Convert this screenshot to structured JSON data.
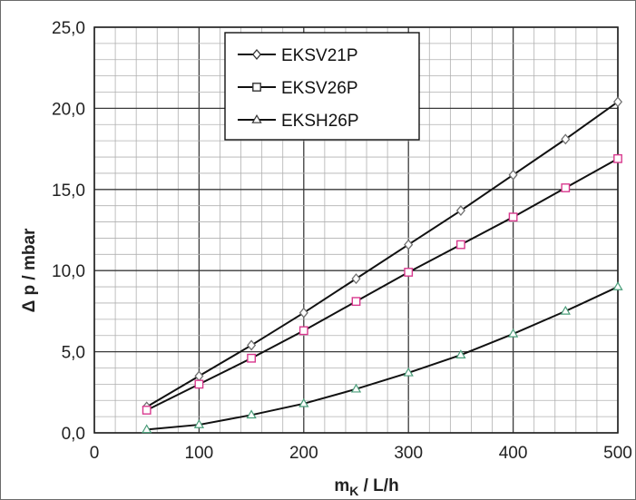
{
  "chart_data": {
    "type": "line",
    "xlabel_main": "m",
    "xlabel_sub": "K",
    "xlabel_rest": " /  L/h",
    "ylabel": "Δ p  /  mbar",
    "xlim": [
      0,
      500
    ],
    "ylim": [
      0,
      25
    ],
    "x_ticks": [
      "0",
      "100",
      "200",
      "300",
      "400",
      "500"
    ],
    "y_ticks": [
      "0,0",
      "5,0",
      "10,0",
      "15,0",
      "20,0",
      "25,0"
    ],
    "grid": true,
    "legend_position": "top-center",
    "x": [
      50,
      100,
      150,
      200,
      250,
      300,
      350,
      400,
      450,
      500
    ],
    "series": [
      {
        "name": "EKSV21P",
        "marker": "diamond",
        "marker_color": "#707070",
        "values": [
          1.6,
          3.5,
          5.4,
          7.4,
          9.5,
          11.6,
          13.7,
          15.9,
          18.1,
          20.4
        ]
      },
      {
        "name": "EKSV26P",
        "marker": "square",
        "marker_color": "#d8398e",
        "values": [
          1.4,
          3.0,
          4.6,
          6.3,
          8.1,
          9.9,
          11.6,
          13.3,
          15.1,
          16.9
        ]
      },
      {
        "name": "EKSH26P",
        "marker": "triangle",
        "marker_color": "#4a9e7a",
        "values": [
          0.2,
          0.5,
          1.1,
          1.8,
          2.7,
          3.7,
          4.8,
          6.1,
          7.5,
          9.0
        ]
      }
    ]
  }
}
